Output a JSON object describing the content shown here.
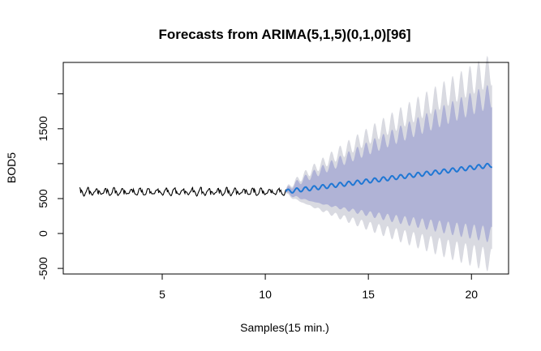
{
  "chart_data": {
    "type": "line",
    "title": "Forecasts from ARIMA(5,1,5)(0,1,0)[96]",
    "xlabel": "Samples(15 min.)",
    "ylabel": "BOD5",
    "xlim": [
      0.2,
      21.8
    ],
    "ylim": [
      -580,
      2450
    ],
    "x_ticks": [
      5,
      10,
      15,
      20
    ],
    "x_tick_labels": [
      "5",
      "10",
      "15",
      "20"
    ],
    "y_ticks": [
      -500,
      0,
      500,
      1500
    ],
    "y_tick_labels": [
      "-500",
      "0",
      "500",
      "1500"
    ],
    "y_minor_ticks": [
      1000,
      2000
    ],
    "grid": false,
    "legend": "none",
    "observed": {
      "x_start": 1.0,
      "x_end": 11.0,
      "level": 600,
      "period": 0.42,
      "amplitude": 45,
      "dip_depth": 60
    },
    "forecast": {
      "x_start": 11.0,
      "x_end": 21.0,
      "mean_start": 600,
      "mean_end": 980,
      "period": 0.42,
      "amplitude": 30,
      "band80_halfwidth_start": 20,
      "band80_halfwidth_end": 1000,
      "band95_halfwidth_start": 30,
      "band95_halfwidth_end": 1370
    },
    "colors": {
      "observed": "#000000",
      "forecast_mean": "#1f77d4",
      "band80": "#b0b3d6",
      "band95": "#d9dae1",
      "axis": "#000000"
    }
  }
}
